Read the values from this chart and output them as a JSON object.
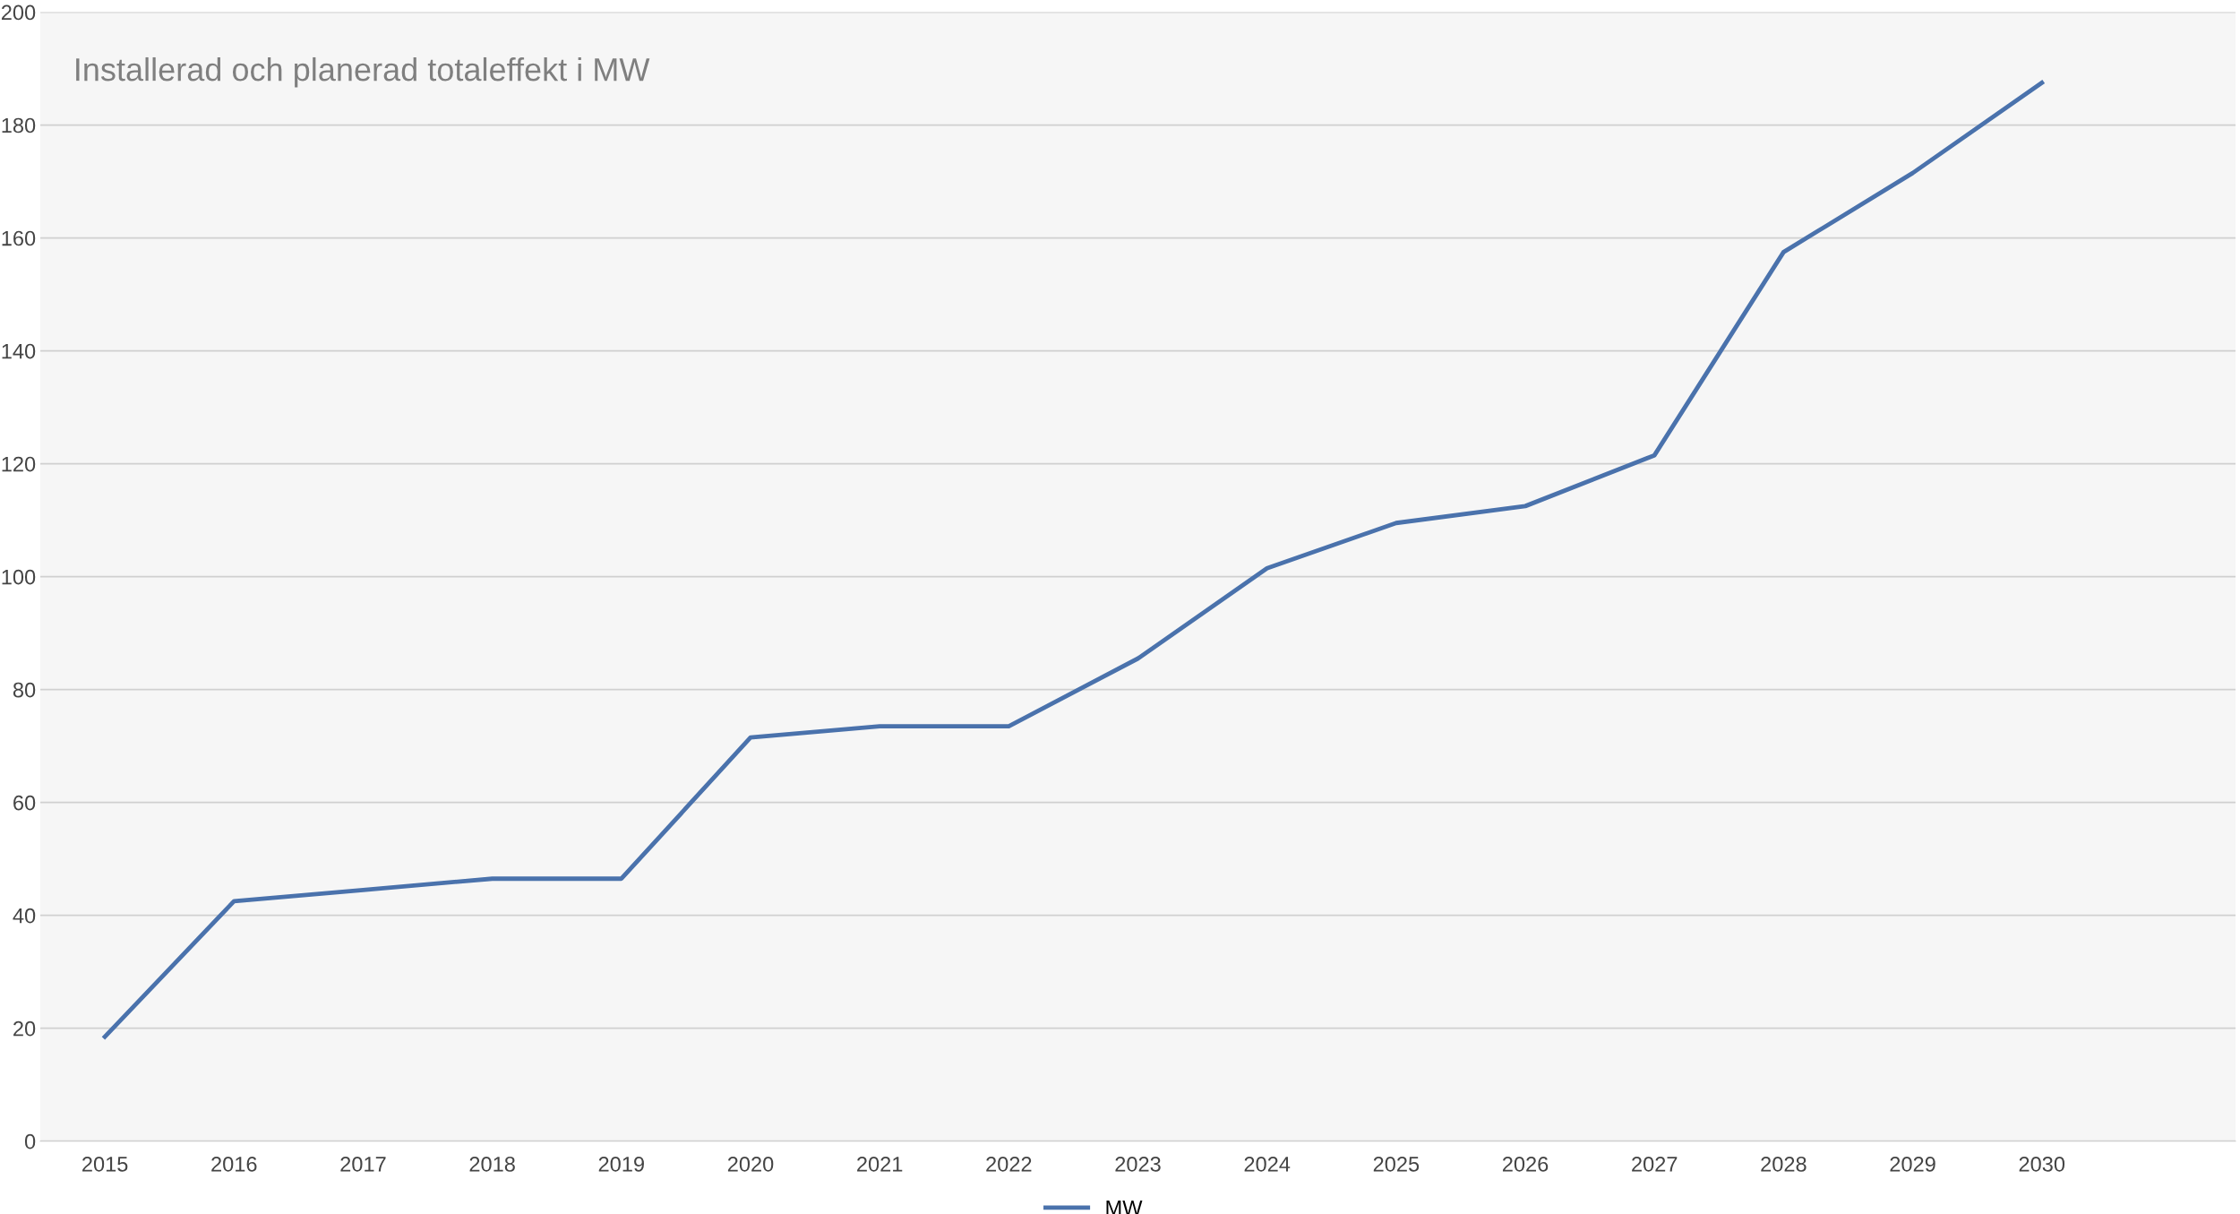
{
  "chart_data": {
    "type": "line",
    "title": "Installerad och planerad totaleffekt i MW",
    "categories": [
      "2015",
      "2016",
      "2017",
      "2018",
      "2019",
      "2020",
      "2021",
      "2022",
      "2023",
      "2024",
      "2025",
      "2026",
      "2027",
      "2028",
      "2029",
      "2030"
    ],
    "series": [
      {
        "name": "MW",
        "color": "#4a72ac",
        "values": [
          18.5,
          42.5,
          44.5,
          46.5,
          46.5,
          71.5,
          73.5,
          73.5,
          85.5,
          101.5,
          109.5,
          112.5,
          121.5,
          157.5,
          171.5,
          187.5
        ]
      }
    ],
    "ylim": [
      0,
      200
    ],
    "yticks": [
      0,
      20,
      40,
      60,
      80,
      100,
      120,
      140,
      160,
      180,
      200
    ],
    "grid": "y",
    "legend": "bottom",
    "marker": "none",
    "line_style": "solid"
  }
}
